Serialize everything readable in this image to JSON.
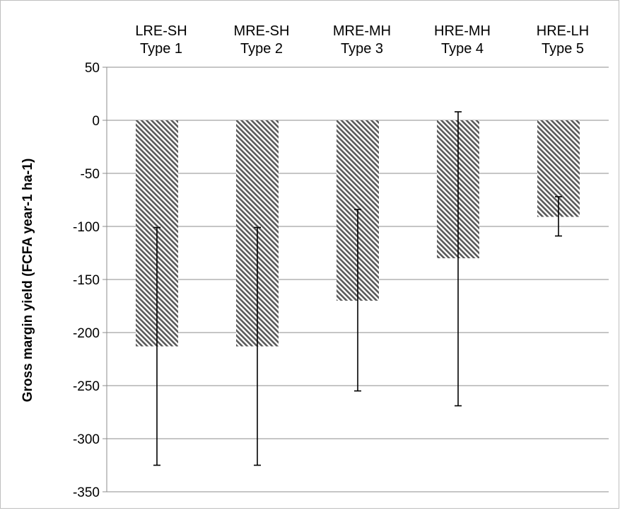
{
  "chart_data": {
    "type": "bar",
    "categories": [
      {
        "line1": "LRE-SH",
        "line2": "Type 1"
      },
      {
        "line1": "MRE-SH",
        "line2": "Type 2"
      },
      {
        "line1": "MRE-MH",
        "line2": "Type 3"
      },
      {
        "line1": "HRE-MH",
        "line2": "Type 4"
      },
      {
        "line1": "HRE-LH",
        "line2": "Type 5"
      }
    ],
    "values": [
      -213,
      -213,
      -170,
      -130,
      -91
    ],
    "error_bars": [
      {
        "low": -325,
        "high": -101
      },
      {
        "low": -325,
        "high": -101
      },
      {
        "low": -255,
        "high": -84
      },
      {
        "low": -269,
        "high": 8
      },
      {
        "low": -109,
        "high": -72
      }
    ],
    "ylabel": "Gross margin yield (FCFA year-1 ha-1)",
    "xlabel": "",
    "ylim": [
      -350,
      50
    ],
    "yticks": [
      50,
      0,
      -50,
      -100,
      -150,
      -200,
      -250,
      -300,
      -350
    ],
    "grid": true,
    "category_labels_position": "top",
    "bar_fill": "diagonal-hatch",
    "colors": {
      "bar_hatch": "#595959",
      "grid": "#8c8c8c",
      "error_bar": "#000000",
      "frame": "#bfbfbf"
    }
  }
}
